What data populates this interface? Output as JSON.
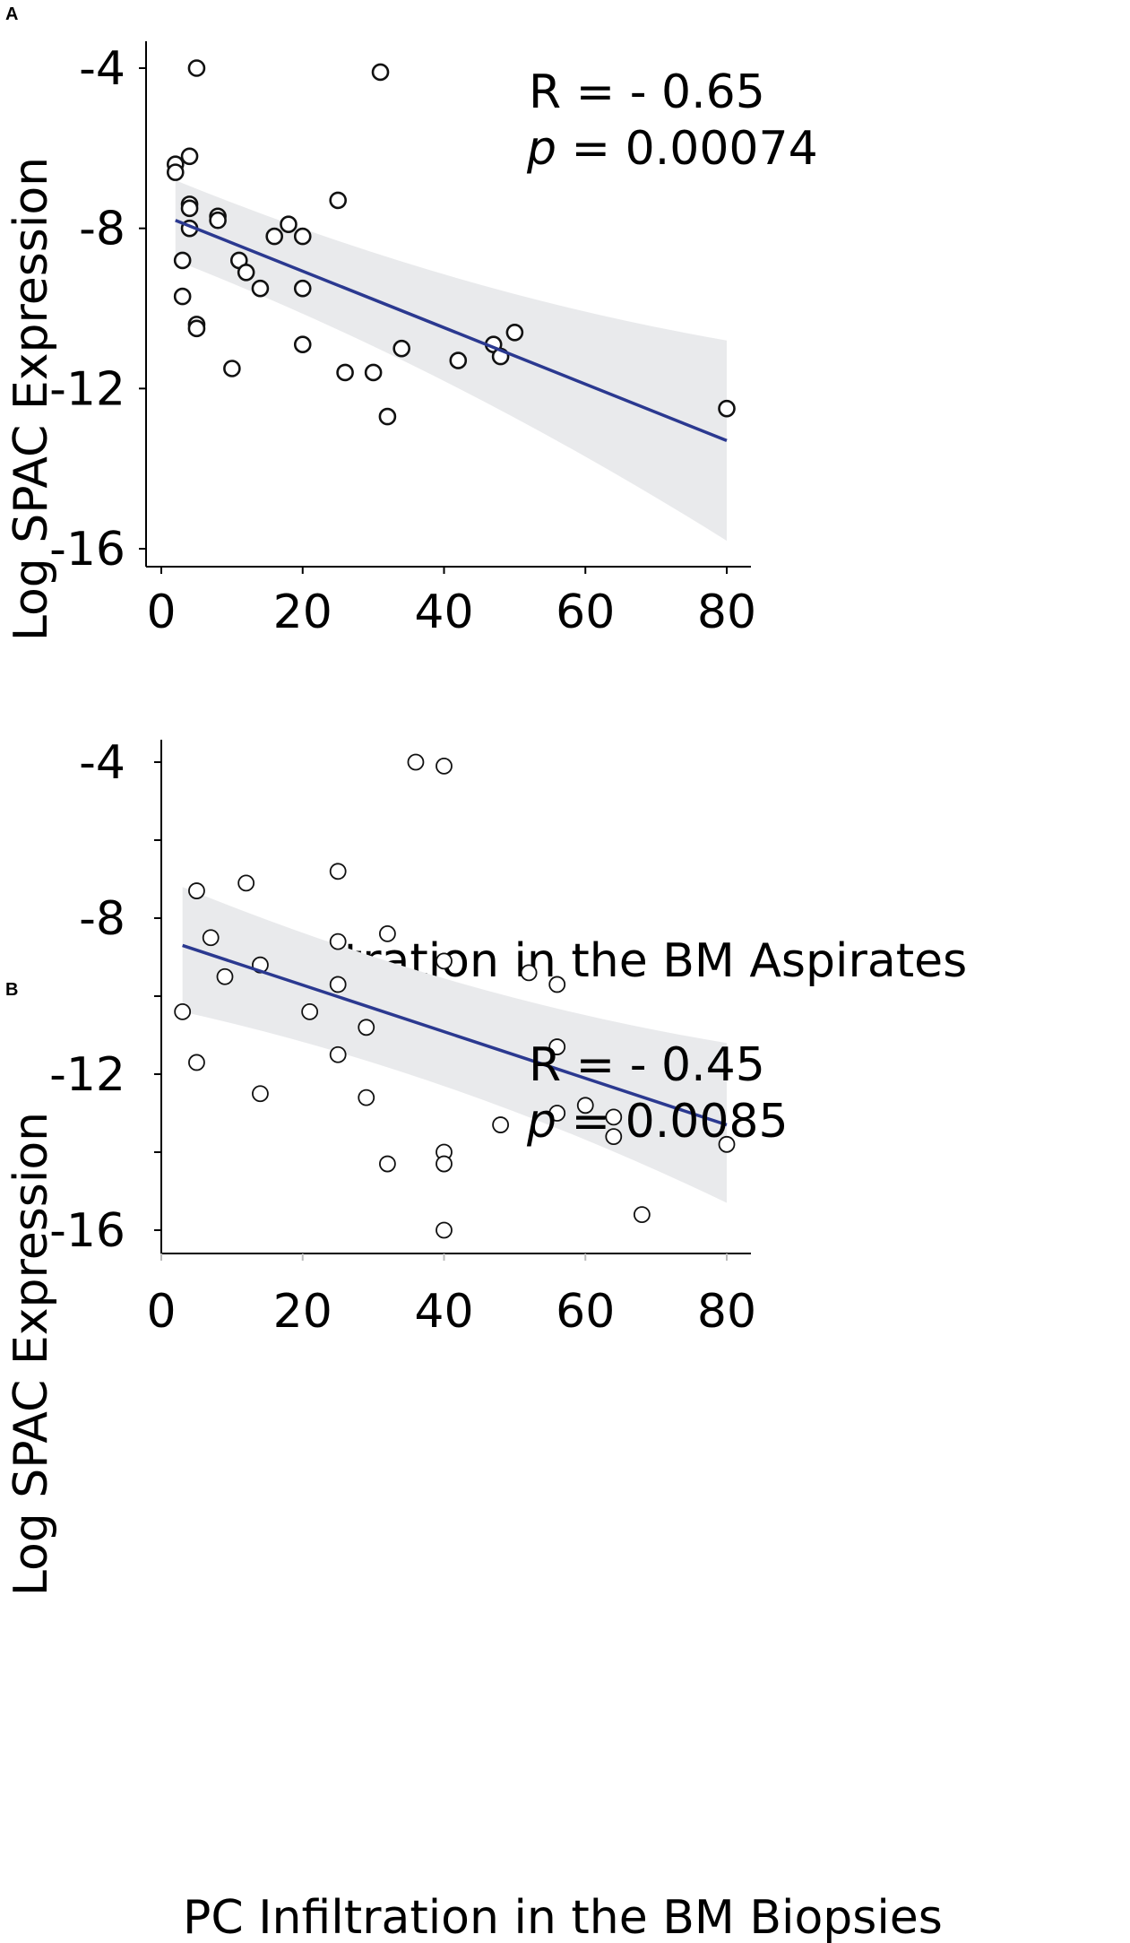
{
  "chart_data": [
    {
      "panel": "A",
      "type": "scatter",
      "title": "",
      "xlabel": "PC Infiltration in the BM Aspirates",
      "ylabel": "Log SPAC Expression",
      "xlim": [
        0,
        80
      ],
      "ylim": [
        -16,
        -4
      ],
      "xticks": [
        0,
        20,
        40,
        60,
        80
      ],
      "yticks": [
        -4,
        -8,
        -12,
        -16
      ],
      "annotation": {
        "r_text": "R = - 0.65",
        "p_label": "p",
        "p_rest": " = 0.00074"
      },
      "fit": {
        "x": [
          2,
          80
        ],
        "y": [
          -7.8,
          -13.3
        ],
        "ci_upper_start": -6.8,
        "ci_upper_end": -10.8,
        "ci_lower_start": -8.8,
        "ci_lower_end": -15.8,
        "color": "#2b3990"
      },
      "points": {
        "x": [
          5,
          31,
          2,
          2,
          4,
          4,
          4,
          4,
          3,
          3,
          5,
          5,
          8,
          8,
          10,
          11,
          12,
          14,
          16,
          18,
          20,
          20,
          20,
          25,
          26,
          30,
          32,
          34,
          42,
          47,
          48,
          50,
          80
        ],
        "y": [
          -4.0,
          -4.1,
          -6.4,
          -6.6,
          -6.2,
          -7.4,
          -7.5,
          -8.0,
          -8.8,
          -9.7,
          -10.4,
          -10.5,
          -7.7,
          -7.8,
          -11.5,
          -8.8,
          -9.1,
          -9.5,
          -8.2,
          -7.9,
          -8.2,
          -9.5,
          -10.9,
          -7.3,
          -11.6,
          -11.6,
          -12.7,
          -11.0,
          -11.3,
          -10.9,
          -11.2,
          -10.6,
          -12.5
        ]
      }
    },
    {
      "panel": "B",
      "type": "scatter",
      "title": "",
      "xlabel": "PC Infiltration in the BM Biopsies",
      "ylabel": "Log SPAC Expression",
      "xlim": [
        0,
        80
      ],
      "ylim": [
        -16,
        -4
      ],
      "xticks": [
        0,
        20,
        40,
        60,
        80
      ],
      "yticks": [
        -4,
        -8,
        -12,
        -16
      ],
      "annotation": {
        "r_text": "R = - 0.45",
        "p_label": "p",
        "p_rest": " = 0.0085"
      },
      "fit": {
        "x": [
          3,
          80
        ],
        "y": [
          -8.7,
          -13.3
        ],
        "ci_upper_start": -7.2,
        "ci_upper_end": -11.2,
        "ci_lower_start": -10.4,
        "ci_lower_end": -15.3,
        "color": "#2b3990"
      },
      "points": {
        "x": [
          36,
          40,
          5,
          12,
          25,
          7,
          25,
          32,
          40,
          9,
          14,
          25,
          52,
          56,
          3,
          21,
          29,
          25,
          56,
          5,
          14,
          29,
          48,
          56,
          60,
          64,
          64,
          32,
          40,
          40,
          80,
          68,
          40
        ],
        "y": [
          -4.0,
          -4.1,
          -7.3,
          -7.1,
          -6.8,
          -8.5,
          -8.6,
          -8.4,
          -9.1,
          -9.5,
          -9.2,
          -9.7,
          -9.4,
          -9.7,
          -10.4,
          -10.4,
          -10.8,
          -11.5,
          -11.3,
          -11.7,
          -12.5,
          -12.6,
          -13.3,
          -13.0,
          -12.8,
          -13.1,
          -13.6,
          -14.3,
          -14.0,
          -14.3,
          -13.8,
          -15.6,
          -16.0
        ]
      }
    }
  ]
}
